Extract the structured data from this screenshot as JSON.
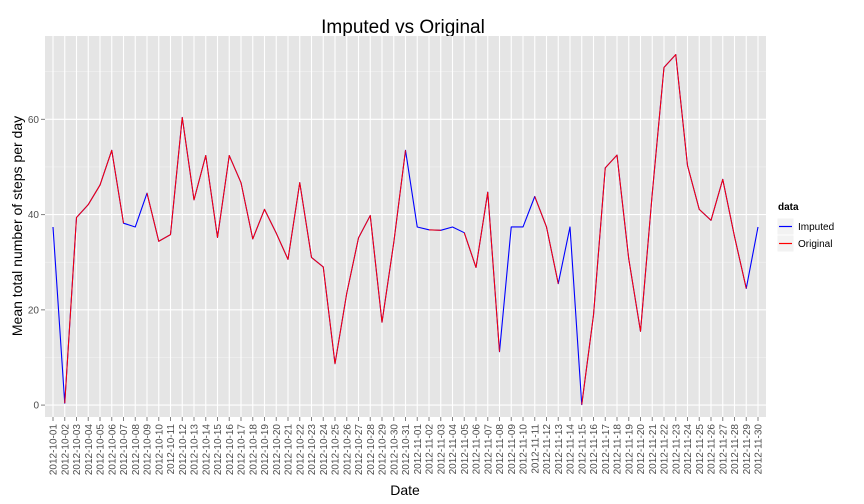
{
  "chart_data": {
    "type": "line",
    "title": "Imputed vs Original",
    "xlabel": "Date",
    "ylabel": "Mean total number of steps per day",
    "ylim": [
      -2.5,
      77.5
    ],
    "y_ticks": [
      0,
      20,
      40,
      60
    ],
    "y_tick_labels": [
      "0",
      "20",
      "40",
      "60"
    ],
    "grid": true,
    "legend": {
      "title": "data",
      "position": "right"
    },
    "categories": [
      "2012-10-01",
      "2012-10-02",
      "2012-10-03",
      "2012-10-04",
      "2012-10-05",
      "2012-10-06",
      "2012-10-07",
      "2012-10-08",
      "2012-10-09",
      "2012-10-10",
      "2012-10-11",
      "2012-10-12",
      "2012-10-13",
      "2012-10-14",
      "2012-10-15",
      "2012-10-16",
      "2012-10-17",
      "2012-10-18",
      "2012-10-19",
      "2012-10-20",
      "2012-10-21",
      "2012-10-22",
      "2012-10-23",
      "2012-10-24",
      "2012-10-25",
      "2012-10-26",
      "2012-10-27",
      "2012-10-28",
      "2012-10-29",
      "2012-10-30",
      "2012-10-31",
      "2012-11-01",
      "2012-11-02",
      "2012-11-03",
      "2012-11-04",
      "2012-11-05",
      "2012-11-06",
      "2012-11-07",
      "2012-11-08",
      "2012-11-09",
      "2012-11-10",
      "2012-11-11",
      "2012-11-12",
      "2012-11-13",
      "2012-11-14",
      "2012-11-15",
      "2012-11-16",
      "2012-11-17",
      "2012-11-18",
      "2012-11-19",
      "2012-11-20",
      "2012-11-21",
      "2012-11-22",
      "2012-11-23",
      "2012-11-24",
      "2012-11-25",
      "2012-11-26",
      "2012-11-27",
      "2012-11-28",
      "2012-11-29",
      "2012-11-30"
    ],
    "series": [
      {
        "name": "Imputed",
        "color": "#0000ff",
        "values": [
          37.4,
          0.4,
          39.4,
          42.1,
          46.2,
          53.5,
          38.2,
          37.4,
          44.5,
          34.4,
          35.8,
          60.4,
          43.1,
          52.4,
          35.2,
          52.4,
          46.7,
          34.9,
          41.1,
          36.1,
          30.6,
          46.7,
          31.0,
          29.0,
          8.7,
          23.5,
          35.1,
          39.8,
          17.4,
          34.1,
          53.5,
          37.4,
          36.8,
          36.7,
          37.4,
          36.2,
          28.9,
          44.7,
          11.2,
          37.4,
          37.4,
          43.8,
          37.4,
          25.5,
          37.4,
          0.1,
          18.9,
          49.8,
          52.5,
          30.7,
          15.5,
          44.4,
          70.9,
          73.6,
          50.3,
          41.1,
          38.8,
          47.4,
          35.4,
          24.5,
          37.4
        ]
      },
      {
        "name": "Original",
        "color": "#ff0000",
        "values": [
          null,
          0.4,
          39.4,
          42.1,
          46.2,
          53.5,
          38.2,
          null,
          44.5,
          34.4,
          35.8,
          60.4,
          43.1,
          52.4,
          35.2,
          52.4,
          46.7,
          34.9,
          41.1,
          36.1,
          30.6,
          46.7,
          31.0,
          29.0,
          8.7,
          23.5,
          35.1,
          39.8,
          17.4,
          34.1,
          53.5,
          null,
          36.8,
          36.7,
          null,
          36.2,
          28.9,
          44.7,
          11.2,
          null,
          null,
          43.8,
          37.4,
          25.5,
          null,
          0.1,
          18.9,
          49.8,
          52.5,
          30.7,
          15.5,
          44.4,
          70.9,
          73.6,
          50.3,
          41.1,
          38.8,
          47.4,
          35.4,
          24.5,
          null
        ]
      }
    ]
  }
}
